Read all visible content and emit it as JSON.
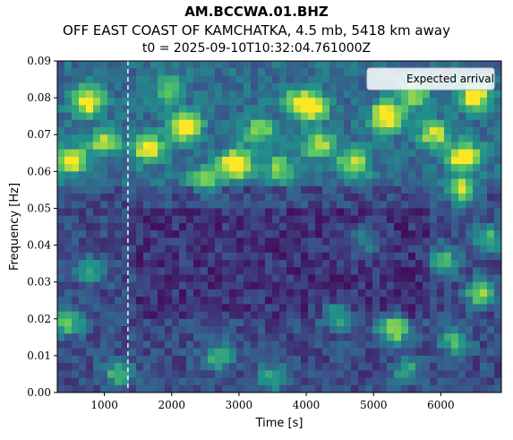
{
  "chart_data": {
    "type": "heatmap",
    "title": "AM.BCCWA.01.BHZ",
    "subtitle": "OFF EAST COAST OF KAMCHATKA, 4.5 mb, 5418 km away",
    "subtitle2": "t0 = 2025-09-10T10:32:04.761000Z",
    "xlabel": "Time [s]",
    "ylabel": "Frequency [Hz]",
    "xlim": [
      300,
      6900
    ],
    "ylim": [
      0.0,
      0.09
    ],
    "xticks": [
      1000,
      2000,
      3000,
      4000,
      5000,
      6000
    ],
    "yticks": [
      0.0,
      0.01,
      0.02,
      0.03,
      0.04,
      0.05,
      0.06,
      0.07,
      0.08,
      0.09
    ],
    "ytick_labels": [
      "0.00",
      "0.01",
      "0.02",
      "0.03",
      "0.04",
      "0.05",
      "0.06",
      "0.07",
      "0.08",
      "0.09"
    ],
    "colormap": "viridis",
    "expected_arrival_s": 1350,
    "legend": {
      "label": "Expected arrival",
      "placement": "top-right"
    },
    "hotspots": [
      {
        "t": 2950,
        "f": 0.062,
        "level": 1.0
      },
      {
        "t": 5200,
        "f": 0.075,
        "level": 0.95
      },
      {
        "t": 6350,
        "f": 0.064,
        "level": 0.9
      },
      {
        "t": 750,
        "f": 0.079,
        "level": 0.85
      },
      {
        "t": 2200,
        "f": 0.072,
        "level": 0.85
      },
      {
        "t": 500,
        "f": 0.063,
        "level": 0.75
      },
      {
        "t": 1650,
        "f": 0.066,
        "level": 0.75
      },
      {
        "t": 5300,
        "f": 0.017,
        "level": 0.7
      },
      {
        "t": 6500,
        "f": 0.08,
        "level": 0.8
      },
      {
        "t": 4700,
        "f": 0.062,
        "level": 0.6
      },
      {
        "t": 6300,
        "f": 0.055,
        "level": 0.65
      },
      {
        "t": 6600,
        "f": 0.027,
        "level": 0.6
      },
      {
        "t": 4200,
        "f": 0.067,
        "level": 0.55
      },
      {
        "t": 3900,
        "f": 0.079,
        "level": 0.55
      },
      {
        "t": 3600,
        "f": 0.061,
        "level": 0.5
      },
      {
        "t": 4100,
        "f": 0.077,
        "level": 0.6
      },
      {
        "t": 450,
        "f": 0.019,
        "level": 0.55
      },
      {
        "t": 2700,
        "f": 0.01,
        "level": 0.45
      },
      {
        "t": 5900,
        "f": 0.07,
        "level": 0.6
      },
      {
        "t": 3300,
        "f": 0.071,
        "level": 0.5
      },
      {
        "t": 1000,
        "f": 0.068,
        "level": 0.55
      },
      {
        "t": 2500,
        "f": 0.058,
        "level": 0.45
      },
      {
        "t": 5600,
        "f": 0.081,
        "level": 0.55
      },
      {
        "t": 1950,
        "f": 0.082,
        "level": 0.45
      },
      {
        "t": 4450,
        "f": 0.021,
        "level": 0.4
      },
      {
        "t": 6200,
        "f": 0.014,
        "level": 0.45
      },
      {
        "t": 1200,
        "f": 0.005,
        "level": 0.4
      },
      {
        "t": 3500,
        "f": 0.004,
        "level": 0.35
      },
      {
        "t": 5500,
        "f": 0.006,
        "level": 0.35
      },
      {
        "t": 800,
        "f": 0.033,
        "level": 0.35
      },
      {
        "t": 6700,
        "f": 0.042,
        "level": 0.45
      },
      {
        "t": 4900,
        "f": 0.041,
        "level": 0.35
      },
      {
        "t": 6050,
        "f": 0.036,
        "level": 0.4
      }
    ]
  }
}
